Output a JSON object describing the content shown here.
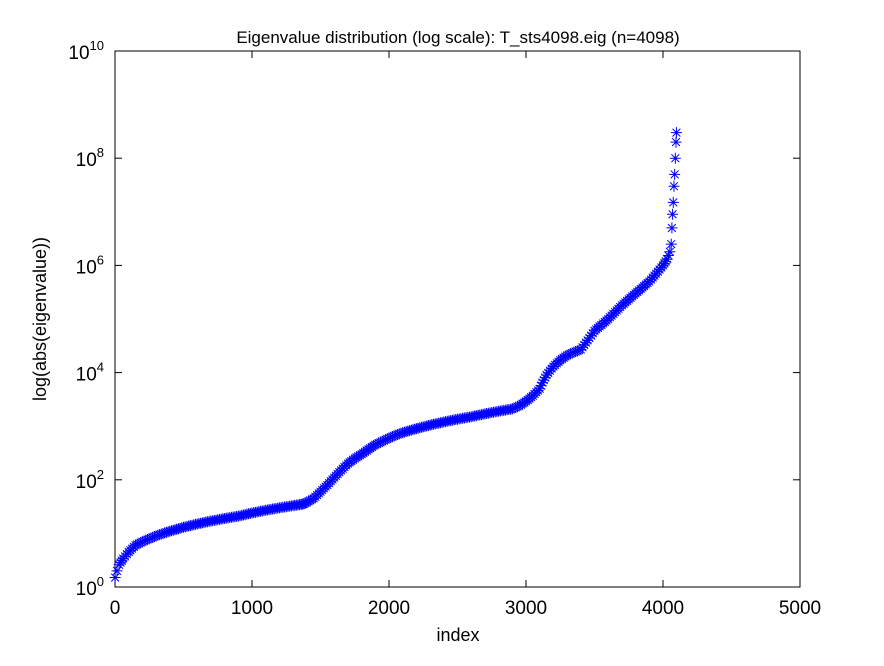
{
  "chart_data": {
    "type": "scatter",
    "title": "Eigenvalue distribution (log scale): T_sts4098.eig (n=4098)",
    "xlabel": "index",
    "ylabel": "log(abs(eigenvalue))",
    "xlim": [
      0,
      5000
    ],
    "ylim": [
      1,
      10000000000
    ],
    "yscale": "log",
    "grid": false,
    "marker": "asterisk",
    "color": "#0000ff",
    "x_ticks": [
      0,
      1000,
      2000,
      3000,
      4000,
      5000
    ],
    "x_tick_labels": [
      "0",
      "1000",
      "2000",
      "3000",
      "4000",
      "5000"
    ],
    "y_ticks": [
      {
        "base": "10",
        "exp": "0",
        "value": 1
      },
      {
        "base": "10",
        "exp": "2",
        "value": 100
      },
      {
        "base": "10",
        "exp": "4",
        "value": 10000
      },
      {
        "base": "10",
        "exp": "6",
        "value": 1000000
      },
      {
        "base": "10",
        "exp": "8",
        "value": 100000000
      },
      {
        "base": "10",
        "exp": "10",
        "value": 10000000000
      }
    ],
    "n": 4098,
    "series": [
      {
        "x": [
          1,
          15,
          30,
          60,
          100,
          150,
          200,
          300,
          400,
          500,
          600,
          700,
          800,
          900,
          1000,
          1100,
          1200,
          1300,
          1370,
          1400,
          1450,
          1500,
          1550,
          1600,
          1650,
          1700,
          1750,
          1800,
          1850,
          1900,
          1950,
          2000,
          2050,
          2100,
          2200,
          2300,
          2400,
          2500,
          2600,
          2700,
          2800,
          2900,
          2950,
          3000,
          3050,
          3100,
          3120,
          3150,
          3200,
          3250,
          3300,
          3350,
          3400,
          3450,
          3500,
          3600,
          3700,
          3800,
          3900,
          3950,
          4000,
          4030,
          4050,
          4060,
          4065,
          4070,
          4075,
          4080,
          4085,
          4090,
          4095,
          4098
        ],
        "y": [
          1.5,
          2,
          2.6,
          3.4,
          4.5,
          6,
          7,
          9,
          11,
          13,
          15,
          17,
          19,
          21,
          24,
          27,
          30,
          33,
          35,
          38,
          45,
          60,
          80,
          110,
          150,
          200,
          250,
          300,
          370,
          450,
          520,
          600,
          680,
          760,
          900,
          1050,
          1200,
          1350,
          1500,
          1700,
          1900,
          2100,
          2400,
          2900,
          3700,
          5000,
          6500,
          9000,
          13000,
          17000,
          21000,
          24000,
          27000,
          40000,
          60000,
          100000,
          180000,
          300000,
          500000,
          700000,
          1000000,
          1300000,
          1800000,
          2500000,
          5000000,
          9000000,
          15000000,
          30000000,
          50000000,
          100000000,
          200000000,
          300000000
        ]
      }
    ]
  }
}
